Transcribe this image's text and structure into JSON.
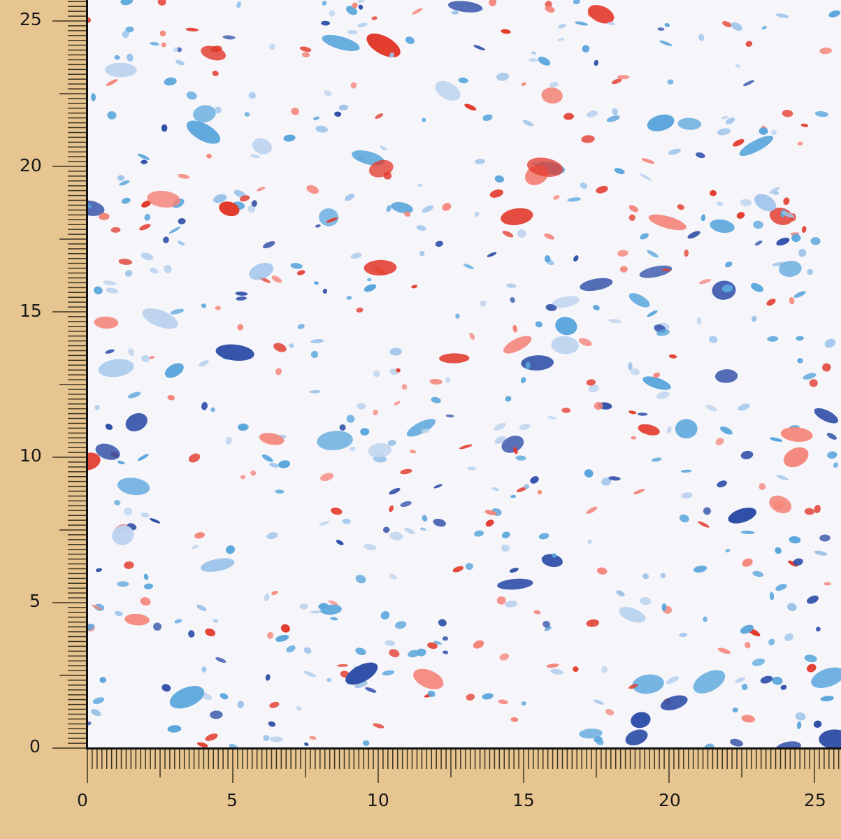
{
  "image": {
    "subject": "sea-creature print fabric",
    "colors": {
      "background": "#e6c590",
      "fabric": "#f6f5fa",
      "light_blue": "#5aa6dc",
      "dark_blue": "#2f4fa8",
      "red": "#e23a2c",
      "pink": "#f4857a"
    }
  },
  "ruler_left": {
    "labels": [
      "25",
      "20",
      "15",
      "10",
      "5",
      "0"
    ]
  },
  "ruler_bottom": {
    "labels": [
      "0",
      "5",
      "10",
      "15",
      "20",
      "25"
    ]
  }
}
